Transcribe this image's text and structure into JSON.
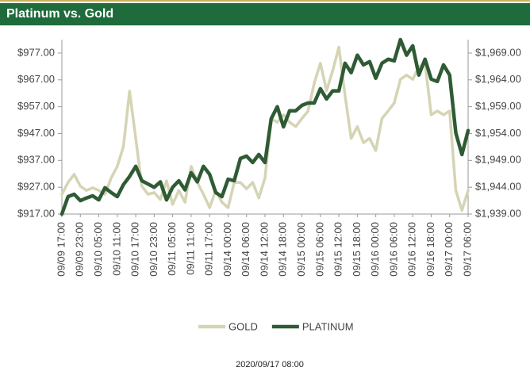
{
  "chart_data": {
    "type": "line",
    "title": "Platinum vs. Gold",
    "timestamp": "2020/09/17 08:00",
    "categories": [
      "09/09 17:00",
      null,
      null,
      "09/09 23:00",
      null,
      null,
      "09/10 05:00",
      null,
      null,
      "09/10 11:00",
      null,
      null,
      "09/10 17:00",
      null,
      null,
      "09/10 23:00",
      null,
      null,
      "09/11 05:00",
      null,
      null,
      "09/11 11:00",
      null,
      null,
      "09/11 17:00",
      null,
      null,
      "09/14 00:00",
      null,
      null,
      "09/14 06:00",
      null,
      null,
      "09/14 12:00",
      null,
      null,
      "09/14 18:00",
      null,
      null,
      "09/15 00:00",
      null,
      null,
      "09/15 06:00",
      null,
      null,
      "09/15 12:00",
      null,
      null,
      "09/15 18:00",
      null,
      null,
      "09/16 00:00",
      null,
      null,
      "09/16 06:00",
      null,
      null,
      "09/16 12:00",
      null,
      null,
      "09/16 18:00",
      null,
      null,
      "09/17 00:00",
      null,
      null,
      "09/17 06:00"
    ],
    "series": [
      {
        "name": "GOLD",
        "color": "#d5d4b4",
        "axis": "y2",
        "values": [
          1942.7,
          1944.9,
          1946.4,
          1944.2,
          1943.4,
          1943.9,
          1943.4,
          1942.7,
          1945.7,
          1947.9,
          1951.6,
          1961.9,
          1953.1,
          1944.2,
          1942.7,
          1943.0,
          1941.7,
          1945.2,
          1940.8,
          1943.4,
          1941.2,
          1947.9,
          1944.9,
          1942.7,
          1940.2,
          1943.4,
          1941.2,
          1940.2,
          1944.9,
          1944.9,
          1943.7,
          1944.9,
          1942.0,
          1945.7,
          1956.8,
          1956.1,
          1957.5,
          1956.1,
          1955.3,
          1956.8,
          1958.2,
          1963.4,
          1967.1,
          1962.0,
          1965.7,
          1970.1,
          1961.2,
          1953.1,
          1955.3,
          1952.3,
          1953.1,
          1950.8,
          1956.8,
          1958.2,
          1959.7,
          1964.1,
          1964.9,
          1964.1,
          1966.4,
          1967.1,
          1957.5,
          1958.2,
          1957.5,
          1958.2,
          1943.4,
          1939.7,
          1943.4
        ]
      },
      {
        "name": "PLATINUM",
        "color": "#2e5b34",
        "values": [
          917.0,
          923.5,
          924.4,
          922.0,
          923.0,
          923.8,
          922.3,
          926.8,
          925.0,
          923.5,
          928.0,
          931.0,
          934.8,
          929.4,
          928.2,
          927.0,
          929.0,
          922.3,
          927.0,
          929.4,
          926.0,
          932.4,
          929.0,
          934.8,
          931.8,
          925.0,
          923.5,
          930.0,
          929.4,
          937.7,
          938.6,
          936.2,
          939.2,
          936.2,
          952.5,
          957.0,
          949.5,
          955.5,
          955.5,
          957.5,
          958.4,
          958.4,
          963.7,
          959.9,
          962.9,
          962.9,
          973.2,
          969.7,
          976.2,
          972.6,
          973.8,
          967.6,
          973.2,
          974.7,
          974.1,
          982.0,
          976.2,
          979.7,
          968.8,
          974.7,
          967.3,
          966.4,
          972.6,
          968.8,
          947.2,
          939.2,
          948.1
        ]
      }
    ],
    "ylim": [
      917,
      982
    ],
    "yticks": [
      {
        "value": 917,
        "label": "$917.00"
      },
      {
        "value": 927,
        "label": "$927.00"
      },
      {
        "value": 937,
        "label": "$937.00"
      },
      {
        "value": 947,
        "label": "$947.00"
      },
      {
        "value": 957,
        "label": "$957.00"
      },
      {
        "value": 967,
        "label": "$967.00"
      },
      {
        "value": 977,
        "label": "$977.00"
      }
    ],
    "y2lim": [
      1939,
      1971.5
    ],
    "y2ticks": [
      {
        "value": 1939,
        "label": "$1,939.00"
      },
      {
        "value": 1944,
        "label": "$1,944.00"
      },
      {
        "value": 1949,
        "label": "$1,949.00"
      },
      {
        "value": 1954,
        "label": "$1,954.00"
      },
      {
        "value": 1959,
        "label": "$1,959.00"
      },
      {
        "value": 1964,
        "label": "$1,964.00"
      },
      {
        "value": 1969,
        "label": "$1,969.00"
      }
    ],
    "grid": false,
    "legend": "bottom"
  }
}
